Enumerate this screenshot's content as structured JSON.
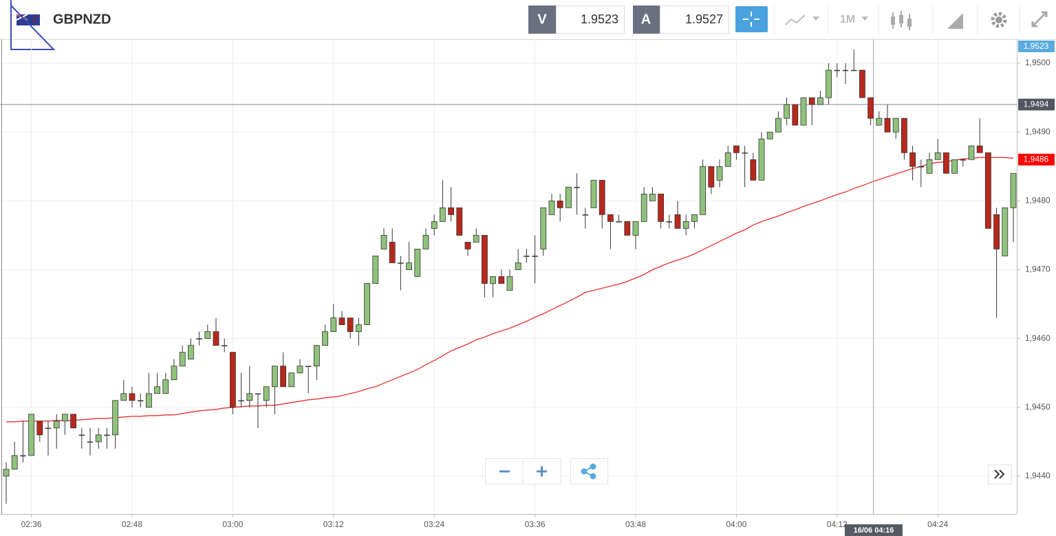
{
  "header": {
    "symbol": "GBPNZD",
    "bid_label": "V",
    "bid": 1.9523,
    "ask_label": "A",
    "ask": 1.9527,
    "timeframe": "1M"
  },
  "chart_data": {
    "type": "candlestick",
    "categories": [
      null,
      null,
      null,
      "02:36",
      null,
      null,
      null,
      null,
      null,
      null,
      null,
      null,
      null,
      null,
      null,
      "02:48",
      null,
      null,
      null,
      null,
      null,
      null,
      null,
      null,
      null,
      null,
      null,
      "03:00",
      null,
      null,
      null,
      null,
      null,
      null,
      null,
      null,
      null,
      null,
      null,
      "03:12",
      null,
      null,
      null,
      null,
      null,
      null,
      null,
      null,
      null,
      null,
      null,
      "03:24",
      null,
      null,
      null,
      null,
      null,
      null,
      null,
      null,
      null,
      null,
      null,
      "03:36",
      null,
      null,
      null,
      null,
      null,
      null,
      null,
      null,
      null,
      null,
      null,
      "03:48",
      null,
      null,
      null,
      null,
      null,
      null,
      null,
      null,
      null,
      null,
      null,
      "04:00",
      null,
      null,
      null,
      null,
      null,
      null,
      null,
      null,
      null,
      null,
      null,
      "04:12",
      null,
      null,
      null,
      null,
      null,
      null,
      null,
      null,
      null,
      null,
      null,
      "04:24",
      null,
      null,
      null,
      null,
      null,
      null,
      null,
      null,
      null
    ],
    "open": [
      1.944,
      1.9441,
      1.9443,
      1.9443,
      1.9448,
      1.9447,
      1.9447,
      1.9448,
      1.9449,
      1.9446,
      1.9445,
      1.9445,
      1.9446,
      1.9446,
      1.9451,
      1.9452,
      1.9451,
      1.945,
      1.9452,
      1.9452,
      1.9454,
      1.9456,
      1.9457,
      1.946,
      1.946,
      1.9461,
      1.9459,
      1.9458,
      1.9451,
      1.9451,
      1.9452,
      1.9451,
      1.9453,
      1.9456,
      1.9453,
      1.9455,
      1.9456,
      1.9456,
      1.9459,
      1.9461,
      1.9463,
      1.9463,
      1.9461,
      1.9462,
      1.9468,
      1.9473,
      1.9474,
      1.9471,
      1.947,
      1.9469,
      1.9473,
      1.9476,
      1.9477,
      1.9479,
      1.9479,
      1.9474,
      1.9474,
      1.9475,
      1.9468,
      1.9469,
      1.9467,
      1.947,
      1.9472,
      1.9472,
      1.9473,
      1.9478,
      1.948,
      1.9479,
      1.9482,
      1.9478,
      1.9479,
      1.9483,
      1.9478,
      1.9477,
      1.9477,
      1.9475,
      1.9477,
      1.948,
      1.9481,
      1.9477,
      1.9478,
      1.9476,
      1.9477,
      1.9478,
      1.9485,
      1.9483,
      1.9485,
      1.9488,
      1.9487,
      1.9486,
      1.9483,
      1.9489,
      1.949,
      1.9492,
      1.9494,
      1.9491,
      1.9495,
      1.9494,
      1.9495,
      1.9499,
      1.9499,
      1.9499,
      1.9499,
      1.9495,
      1.9491,
      1.9492,
      1.949,
      1.9492,
      1.9487,
      1.9485,
      1.9484,
      1.9486,
      1.9487,
      1.9484,
      1.9486,
      1.9486,
      1.9488,
      1.9487,
      1.9478,
      1.9472,
      1.9479
    ],
    "high": [
      1.9442,
      1.9445,
      1.9448,
      1.9449,
      1.9448,
      1.9448,
      1.9449,
      1.9449,
      1.9449,
      1.9447,
      1.9447,
      1.9447,
      1.9447,
      1.9451,
      1.9454,
      1.9453,
      1.9452,
      1.9455,
      1.9455,
      1.9455,
      1.9457,
      1.9459,
      1.946,
      1.9461,
      1.9462,
      1.9463,
      1.946,
      1.9458,
      1.9455,
      1.9456,
      1.9452,
      1.9453,
      1.9456,
      1.9458,
      1.9455,
      1.9457,
      1.9456,
      1.9459,
      1.9462,
      1.9465,
      1.9464,
      1.9463,
      1.9463,
      1.9468,
      1.9472,
      1.9476,
      1.9476,
      1.9472,
      1.9474,
      1.9473,
      1.9476,
      1.9478,
      1.9483,
      1.9482,
      1.9479,
      1.9474,
      1.9476,
      1.9475,
      1.9469,
      1.947,
      1.947,
      1.9473,
      1.9473,
      1.9475,
      1.9479,
      1.9481,
      1.9481,
      1.9482,
      1.9484,
      1.9479,
      1.9483,
      1.9483,
      1.9478,
      1.9478,
      1.9477,
      1.9477,
      1.9482,
      1.9482,
      1.9481,
      1.9478,
      1.948,
      1.9478,
      1.9478,
      1.9486,
      1.9485,
      1.9486,
      1.9488,
      1.9488,
      1.9488,
      1.9487,
      1.949,
      1.949,
      1.9493,
      1.9495,
      1.9494,
      1.9495,
      1.9495,
      1.9496,
      1.95,
      1.95,
      1.95,
      1.9502,
      1.9499,
      1.9495,
      1.9493,
      1.9494,
      1.9492,
      1.9492,
      1.9488,
      1.9486,
      1.9487,
      1.9489,
      1.9487,
      1.9486,
      1.9486,
      1.9488,
      1.9492,
      1.9487,
      1.9479,
      1.9479,
      1.9484
    ],
    "low": [
      1.9436,
      1.9441,
      1.9442,
      1.9443,
      1.9445,
      1.9443,
      1.9444,
      1.9446,
      1.9447,
      1.9444,
      1.9443,
      1.9444,
      1.9444,
      1.9444,
      1.9451,
      1.945,
      1.945,
      1.945,
      1.9452,
      1.9452,
      1.9454,
      1.9456,
      1.9457,
      1.9459,
      1.946,
      1.9459,
      1.9458,
      1.9449,
      1.945,
      1.945,
      1.9447,
      1.945,
      1.9449,
      1.9453,
      1.9453,
      1.9455,
      1.9452,
      1.9454,
      1.9459,
      1.9461,
      1.9462,
      1.946,
      1.9459,
      1.9462,
      1.9468,
      1.9473,
      1.9471,
      1.9467,
      1.947,
      1.9469,
      1.9473,
      1.9475,
      1.9477,
      1.9477,
      1.9475,
      1.9472,
      1.9474,
      1.9466,
      1.9466,
      1.9468,
      1.9467,
      1.947,
      1.9471,
      1.9468,
      1.9472,
      1.9478,
      1.9477,
      1.9479,
      1.9478,
      1.9476,
      1.9479,
      1.9476,
      1.9473,
      1.9477,
      1.9475,
      1.9473,
      1.9477,
      1.948,
      1.9476,
      1.9476,
      1.9476,
      1.9475,
      1.9476,
      1.9478,
      1.9481,
      1.9482,
      1.9485,
      1.9486,
      1.9482,
      1.9483,
      1.9483,
      1.9489,
      1.949,
      1.9491,
      1.9491,
      1.9491,
      1.9491,
      1.9494,
      1.9494,
      1.9498,
      1.9497,
      1.9499,
      1.9495,
      1.9491,
      1.9491,
      1.949,
      1.9489,
      1.9486,
      1.9483,
      1.9482,
      1.9484,
      1.9486,
      1.9484,
      1.9484,
      1.9485,
      1.9486,
      1.9487,
      1.9476,
      1.9463,
      1.9472,
      1.9474
    ],
    "close": [
      1.9441,
      1.9443,
      1.9443,
      1.9449,
      1.9446,
      1.9447,
      1.9448,
      1.9449,
      1.9447,
      1.9446,
      1.9445,
      1.9446,
      1.9446,
      1.9451,
      1.9452,
      1.9451,
      1.9451,
      1.9452,
      1.9453,
      1.9454,
      1.9456,
      1.9458,
      1.9459,
      1.946,
      1.9461,
      1.9459,
      1.9459,
      1.945,
      1.9451,
      1.9452,
      1.9452,
      1.9453,
      1.9456,
      1.9453,
      1.9455,
      1.9456,
      1.9456,
      1.9459,
      1.9461,
      1.9463,
      1.9462,
      1.9461,
      1.9462,
      1.9468,
      1.9472,
      1.9475,
      1.9471,
      1.9471,
      1.9471,
      1.9473,
      1.9475,
      1.9477,
      1.9479,
      1.9478,
      1.9475,
      1.9473,
      1.9475,
      1.9468,
      1.9469,
      1.9468,
      1.9469,
      1.9471,
      1.9472,
      1.9472,
      1.9479,
      1.948,
      1.9479,
      1.9482,
      1.9482,
      1.9478,
      1.9483,
      1.9478,
      1.9477,
      1.9477,
      1.9475,
      1.9477,
      1.9481,
      1.9481,
      1.9477,
      1.9477,
      1.9476,
      1.9477,
      1.9478,
      1.9485,
      1.9482,
      1.9485,
      1.9487,
      1.9487,
      1.9487,
      1.9483,
      1.9489,
      1.949,
      1.9492,
      1.9494,
      1.9491,
      1.9495,
      1.9494,
      1.9495,
      1.9499,
      1.9499,
      1.9499,
      1.9499,
      1.9495,
      1.9492,
      1.9492,
      1.949,
      1.9492,
      1.9487,
      1.9485,
      1.9485,
      1.9486,
      1.9487,
      1.9484,
      1.9486,
      1.9486,
      1.9488,
      1.9487,
      1.9476,
      1.9473,
      1.9479,
      1.9484
    ],
    "up_color": "#90c27c",
    "down_color": "#b8281c",
    "moving_average": {
      "color": "#e8302c",
      "values": [
        1.94479,
        1.94479,
        1.9448,
        1.9448,
        1.9448,
        1.9448,
        1.94481,
        1.94481,
        1.94481,
        1.94482,
        1.94483,
        1.94484,
        1.94484,
        1.94485,
        1.94486,
        1.94487,
        1.94487,
        1.94488,
        1.94488,
        1.94489,
        1.94489,
        1.94491,
        1.94493,
        1.94495,
        1.94496,
        1.94497,
        1.94499,
        1.945,
        1.94501,
        1.94502,
        1.94502,
        1.94503,
        1.94503,
        1.94505,
        1.94507,
        1.94509,
        1.94511,
        1.94512,
        1.94514,
        1.94515,
        1.94517,
        1.9452,
        1.94523,
        1.94527,
        1.9453,
        1.94535,
        1.9454,
        1.94545,
        1.9455,
        1.94555,
        1.94562,
        1.94568,
        1.94575,
        1.94582,
        1.94587,
        1.94592,
        1.94598,
        1.94602,
        1.94607,
        1.94611,
        1.94615,
        1.9462,
        1.94625,
        1.94631,
        1.94636,
        1.94642,
        1.94648,
        1.94654,
        1.9466,
        1.94667,
        1.9467,
        1.94673,
        1.94676,
        1.94679,
        1.94683,
        1.94688,
        1.94693,
        1.947,
        1.94705,
        1.9471,
        1.94714,
        1.94718,
        1.94723,
        1.94729,
        1.94735,
        1.94741,
        1.94747,
        1.94753,
        1.94758,
        1.94765,
        1.9477,
        1.94774,
        1.94778,
        1.94783,
        1.94787,
        1.94792,
        1.94796,
        1.948,
        1.94805,
        1.94809,
        1.94813,
        1.94818,
        1.94822,
        1.94827,
        1.94831,
        1.94835,
        1.94839,
        1.94843,
        1.94847,
        1.9485,
        1.94854,
        1.94856,
        1.94857,
        1.94859,
        1.94861,
        1.94862,
        1.94863,
        1.94863,
        1.94863,
        1.94863,
        1.94862
      ]
    },
    "ylim": [
      1.94345,
      1.95035
    ],
    "yticks": [
      {
        "value": 1.944,
        "label": "1,9440"
      },
      {
        "value": 1.945,
        "label": "1,9450"
      },
      {
        "value": 1.946,
        "label": "1,9460"
      },
      {
        "value": 1.947,
        "label": "1,9470"
      },
      {
        "value": 1.948,
        "label": "1,9480"
      },
      {
        "value": 1.949,
        "label": "1,9490"
      },
      {
        "value": 1.95,
        "label": "1,9500"
      }
    ],
    "grid": true,
    "price_tag": "1,9523",
    "crosshair": {
      "value": 1.9494,
      "label": "1,9494",
      "time_label": "16/06 04:16"
    },
    "ma_tag": {
      "value": 1.9486,
      "label": "1,9486"
    }
  }
}
